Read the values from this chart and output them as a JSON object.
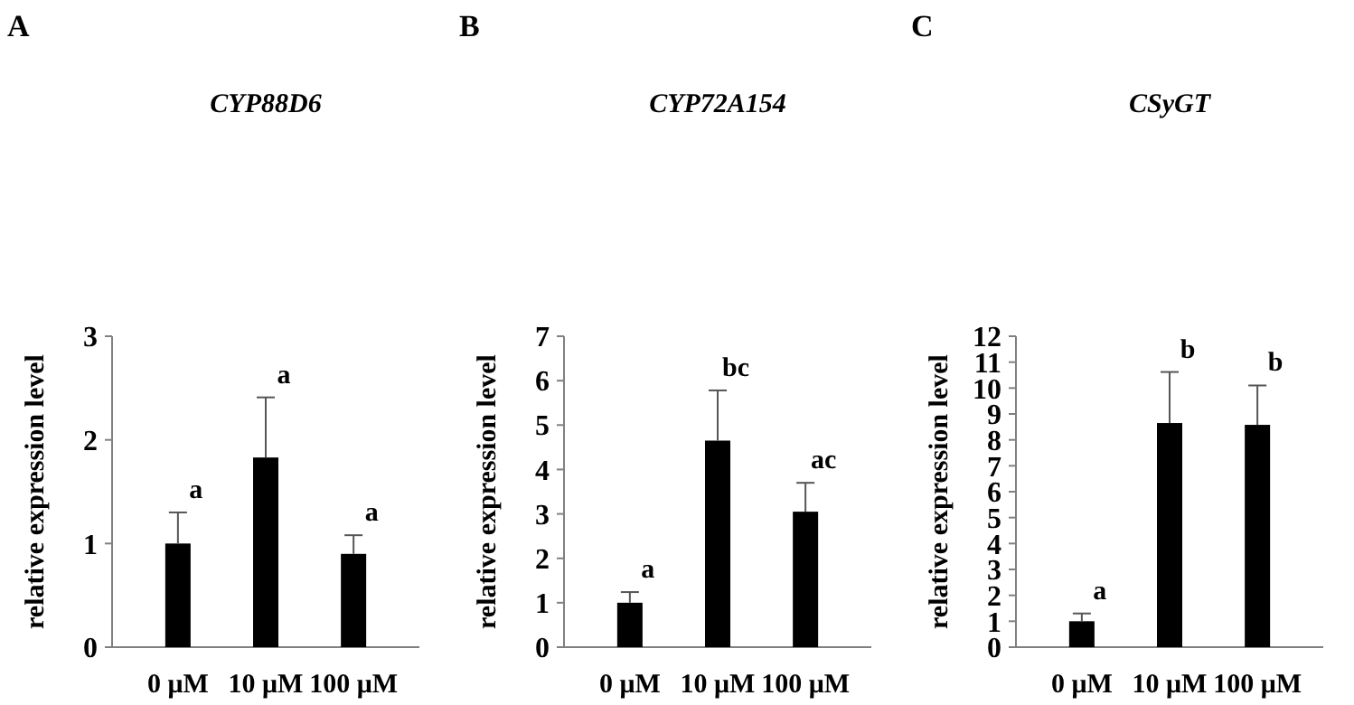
{
  "chart_data": [
    {
      "type": "bar",
      "title": "CYP88D6",
      "ylabel": "relative expression level",
      "categories": [
        "0 μM",
        "10 μM",
        "100 μM"
      ],
      "values": [
        1.0,
        1.83,
        0.9
      ],
      "errors": [
        [
          1.0,
          1.3
        ],
        [
          1.83,
          2.41
        ],
        [
          0.9,
          1.08
        ]
      ],
      "color": "#000000",
      "ylim": [
        0,
        3
      ],
      "yticks": [
        0,
        1,
        2,
        3
      ],
      "annotations": [
        "A",
        {
          "text": "a",
          "x": "0 μM",
          "y": 1.3
        },
        {
          "text": "a",
          "x": "10 μM",
          "y": 2.41
        },
        {
          "text": "a",
          "x": "100 μM",
          "y": 1.08
        }
      ]
    },
    {
      "type": "bar",
      "title": "CYP72A154",
      "ylabel": "relative expression level",
      "categories": [
        "0 μM",
        "10 μM",
        "100 μM"
      ],
      "values": [
        1.0,
        4.65,
        3.05
      ],
      "errors": [
        [
          1.0,
          1.24
        ],
        [
          4.65,
          5.78
        ],
        [
          3.05,
          3.7
        ]
      ],
      "color": "#000000",
      "ylim": [
        0,
        7
      ],
      "yticks": [
        0,
        1,
        2,
        3,
        4,
        5,
        6,
        7
      ],
      "annotations": [
        "B",
        {
          "text": "a",
          "x": "0 μM",
          "y": 1.24
        },
        {
          "text": "bc",
          "x": "10 μM",
          "y": 5.78
        },
        {
          "text": "ac",
          "x": "100 μM",
          "y": 3.7
        }
      ]
    },
    {
      "type": "bar",
      "title": "CSyGT",
      "ylabel": "relative expression level",
      "categories": [
        "0 μM",
        "10 μM",
        "100 μM"
      ],
      "values": [
        1.0,
        8.65,
        8.58
      ],
      "errors": [
        [
          1.0,
          1.3
        ],
        [
          8.65,
          10.62
        ],
        [
          8.58,
          10.1
        ]
      ],
      "color": "#000000",
      "ylim": [
        0,
        12
      ],
      "yticks": [
        0,
        1,
        2,
        3,
        4,
        5,
        6,
        7,
        8,
        9,
        10,
        11,
        12
      ],
      "annotations": [
        "C",
        {
          "text": "a",
          "x": "0 μM",
          "y": 1.3
        },
        {
          "text": "b",
          "x": "10 μM",
          "y": 10.62
        },
        {
          "text": "b",
          "x": "100 μM",
          "y": 10.1
        }
      ]
    }
  ]
}
